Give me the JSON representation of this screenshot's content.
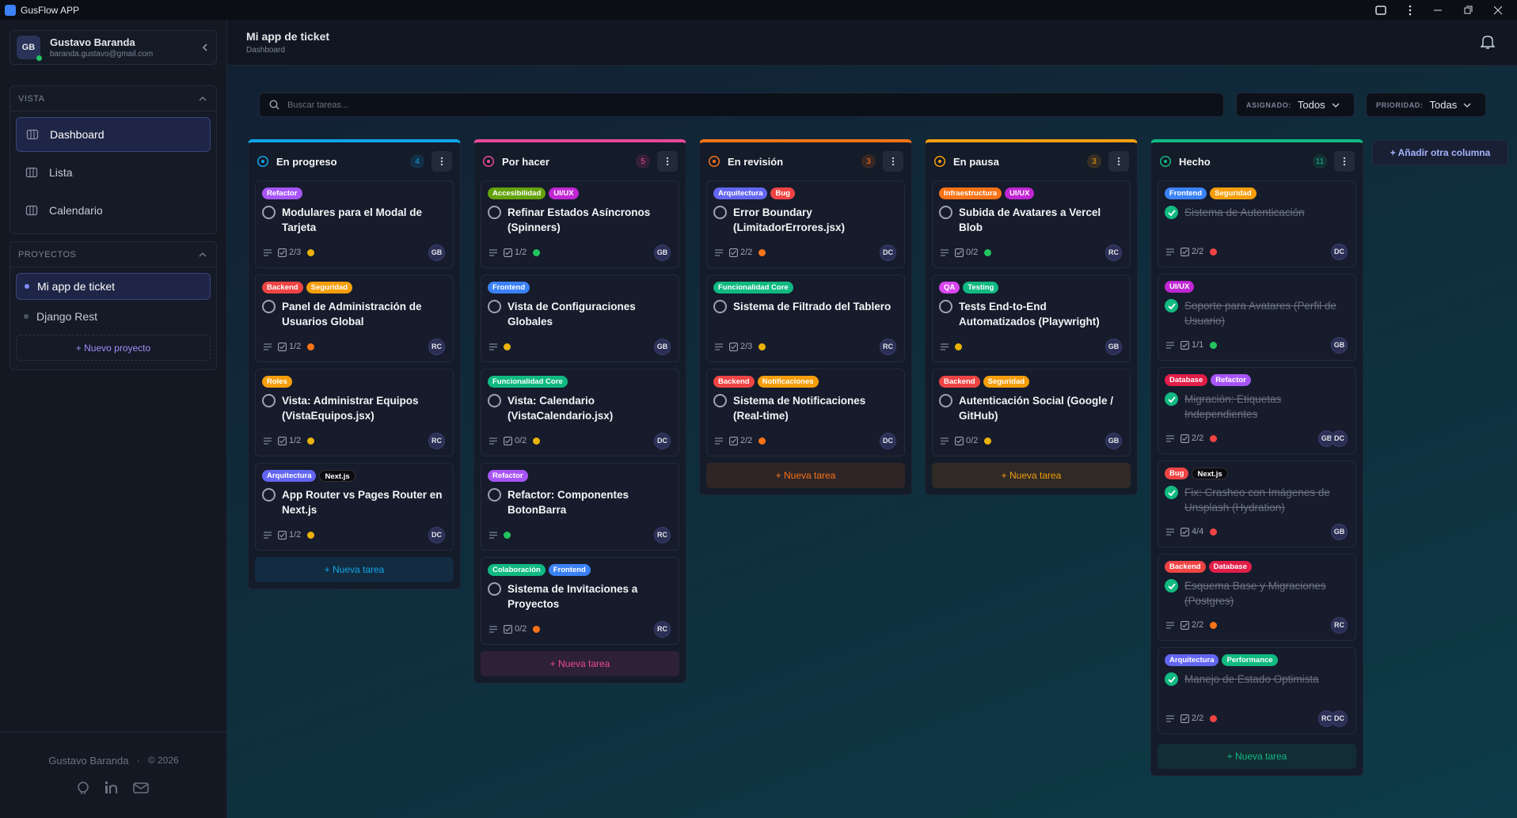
{
  "window": {
    "title": "GusFlow APP"
  },
  "sidebar": {
    "user": {
      "initials": "GB",
      "name": "Gustavo Baranda",
      "email": "baranda.gustavo@gmail.com"
    },
    "view_section": {
      "title": "VISTA",
      "items": [
        "Dashboard",
        "Lista",
        "Calendario"
      ],
      "active": 0
    },
    "projects_section": {
      "title": "PROYECTOS",
      "items": [
        "Mi app de ticket",
        "Django Rest"
      ],
      "active": 0,
      "new_project": "+ Nuevo proyecto"
    },
    "footer": {
      "name": "Gustavo Baranda",
      "separator": "·",
      "copyright": "© 2026"
    }
  },
  "header": {
    "title": "Mi app de ticket",
    "subtitle": "Dashboard"
  },
  "toolbar": {
    "search_placeholder": "Buscar tareas...",
    "filters": [
      {
        "label": "ASIGNADO:",
        "value": "Todos"
      },
      {
        "label": "PRIORIDAD:",
        "value": "Todas"
      }
    ]
  },
  "board": {
    "add_column": "+ Añadir otra columna",
    "new_task": "+ Nueva tarea",
    "columns": [
      {
        "name": "En progreso",
        "count": 4,
        "color": "#0ea5e9",
        "cards": [
          {
            "tags": [
              {
                "name": "Refactor",
                "color": "#a855f7"
              }
            ],
            "title": "Modulares para el Modal de Tarjeta",
            "checklist": "2/3",
            "priority": "#eab308",
            "assignees": [
              "GB"
            ]
          },
          {
            "tags": [
              {
                "name": "Backend",
                "color": "#ef4444"
              },
              {
                "name": "Seguridad",
                "color": "#f59e0b"
              }
            ],
            "title": "Panel de Administración de Usuarios Global",
            "checklist": "1/2",
            "priority": "#f97316",
            "assignees": [
              "RC"
            ]
          },
          {
            "tags": [
              {
                "name": "Roles",
                "color": "#f59e0b"
              }
            ],
            "title": "Vista: Administrar Equipos (VistaEquipos.jsx)",
            "checklist": "1/2",
            "priority": "#eab308",
            "assignees": [
              "RC"
            ]
          },
          {
            "tags": [
              {
                "name": "Arquitectura",
                "color": "#6366f1"
              },
              {
                "name": "Next.js",
                "color": "#0b0b0f"
              }
            ],
            "title": "App Router vs Pages Router en Next.js",
            "checklist": "1/2",
            "priority": "#eab308",
            "assignees": [
              "DC"
            ]
          }
        ]
      },
      {
        "name": "Por hacer",
        "count": 5,
        "color": "#ec4899",
        "cards": [
          {
            "tags": [
              {
                "name": "Accesibilidad",
                "color": "#65a30d"
              },
              {
                "name": "UI/UX",
                "color": "#c026d3"
              }
            ],
            "title": "Refinar Estados Asíncronos (Spinners)",
            "checklist": "1/2",
            "priority": "#22c55e",
            "assignees": [
              "GB"
            ]
          },
          {
            "tags": [
              {
                "name": "Frontend",
                "color": "#3b82f6"
              }
            ],
            "title": "Vista de Configuraciones Globales",
            "priority": "#eab308",
            "assignees": [
              "GB"
            ]
          },
          {
            "tags": [
              {
                "name": "Funcionalidad Core",
                "color": "#10b981"
              }
            ],
            "title": "Vista: Calendario (VistaCalendario.jsx)",
            "checklist": "0/2",
            "priority": "#eab308",
            "assignees": [
              "DC"
            ]
          },
          {
            "tags": [
              {
                "name": "Refactor",
                "color": "#a855f7"
              }
            ],
            "title": "Refactor: Componentes BotonBarra",
            "priority": "#22c55e",
            "assignees": [
              "RC"
            ]
          },
          {
            "tags": [
              {
                "name": "Colaboración",
                "color": "#10b981"
              },
              {
                "name": "Frontend",
                "color": "#3b82f6"
              }
            ],
            "title": "Sistema de Invitaciones a Proyectos",
            "checklist": "0/2",
            "priority": "#f97316",
            "assignees": [
              "RC"
            ]
          }
        ]
      },
      {
        "name": "En revisión",
        "count": 3,
        "color": "#f97316",
        "cards": [
          {
            "tags": [
              {
                "name": "Arquitectura",
                "color": "#6366f1"
              },
              {
                "name": "Bug",
                "color": "#ef4444"
              }
            ],
            "title": "Error Boundary (LimitadorErrores.jsx)",
            "checklist": "2/2",
            "priority": "#f97316",
            "assignees": [
              "DC"
            ]
          },
          {
            "tags": [
              {
                "name": "Funcionalidad Core",
                "color": "#10b981"
              }
            ],
            "title": "Sistema de Filtrado del Tablero",
            "checklist": "2/3",
            "priority": "#eab308",
            "assignees": [
              "RC"
            ]
          },
          {
            "tags": [
              {
                "name": "Backend",
                "color": "#ef4444"
              },
              {
                "name": "Notificaciones",
                "color": "#f59e0b"
              }
            ],
            "title": "Sistema de Notificaciones (Real-time)",
            "checklist": "2/2",
            "priority": "#f97316",
            "assignees": [
              "DC"
            ]
          }
        ]
      },
      {
        "name": "En pausa",
        "count": 3,
        "color": "#f59e0b",
        "cards": [
          {
            "tags": [
              {
                "name": "Infraestructura",
                "color": "#f97316"
              },
              {
                "name": "UI/UX",
                "color": "#c026d3"
              }
            ],
            "title": "Subida de Avatares a Vercel Blob",
            "checklist": "0/2",
            "priority": "#22c55e",
            "assignees": [
              "RC"
            ]
          },
          {
            "tags": [
              {
                "name": "QA",
                "color": "#d946ef"
              },
              {
                "name": "Testing",
                "color": "#10b981"
              }
            ],
            "title": "Tests End-to-End Automatizados (Playwright)",
            "priority": "#eab308",
            "assignees": [
              "GB"
            ]
          },
          {
            "tags": [
              {
                "name": "Backend",
                "color": "#ef4444"
              },
              {
                "name": "Seguridad",
                "color": "#f59e0b"
              }
            ],
            "title": "Autenticación Social (Google / GitHub)",
            "checklist": "0/2",
            "priority": "#eab308",
            "assignees": [
              "GB"
            ]
          }
        ]
      },
      {
        "name": "Hecho",
        "count": 11,
        "color": "#10b981",
        "cards": [
          {
            "tags": [
              {
                "name": "Frontend",
                "color": "#3b82f6"
              },
              {
                "name": "Seguridad",
                "color": "#f59e0b"
              }
            ],
            "title": "Sistema de Autenticación",
            "checklist": "2/2",
            "priority": "#ef4444",
            "assignees": [
              "DC"
            ],
            "done": true
          },
          {
            "tags": [
              {
                "name": "UI/UX",
                "color": "#c026d3"
              }
            ],
            "title": "Soporte para Avatares (Perfil de Usuario)",
            "checklist": "1/1",
            "priority": "#22c55e",
            "assignees": [
              "GB"
            ],
            "done": true
          },
          {
            "tags": [
              {
                "name": "Database",
                "color": "#e11d48"
              },
              {
                "name": "Refactor",
                "color": "#a855f7"
              }
            ],
            "title": "Migración: Etiquetas Independientes",
            "checklist": "2/2",
            "priority": "#ef4444",
            "assignees": [
              "GB",
              "DC"
            ],
            "done": true
          },
          {
            "tags": [
              {
                "name": "Bug",
                "color": "#ef4444"
              },
              {
                "name": "Next.js",
                "color": "#0b0b0f"
              }
            ],
            "title": "Fix: Crasheo con Imágenes de Unsplash (Hydration)",
            "checklist": "4/4",
            "priority": "#ef4444",
            "assignees": [
              "GB"
            ],
            "done": true
          },
          {
            "tags": [
              {
                "name": "Backend",
                "color": "#ef4444"
              },
              {
                "name": "Database",
                "color": "#e11d48"
              }
            ],
            "title": "Esquema Base y Migraciones (Postgres)",
            "checklist": "2/2",
            "priority": "#f97316",
            "assignees": [
              "RC"
            ],
            "done": true
          },
          {
            "tags": [
              {
                "name": "Arquitectura",
                "color": "#6366f1"
              },
              {
                "name": "Performance",
                "color": "#10b981"
              }
            ],
            "title": "Manejo de Estado Optimista",
            "checklist": "2/2",
            "priority": "#ef4444",
            "assignees": [
              "RC",
              "DC"
            ],
            "done": true
          }
        ]
      }
    ]
  }
}
